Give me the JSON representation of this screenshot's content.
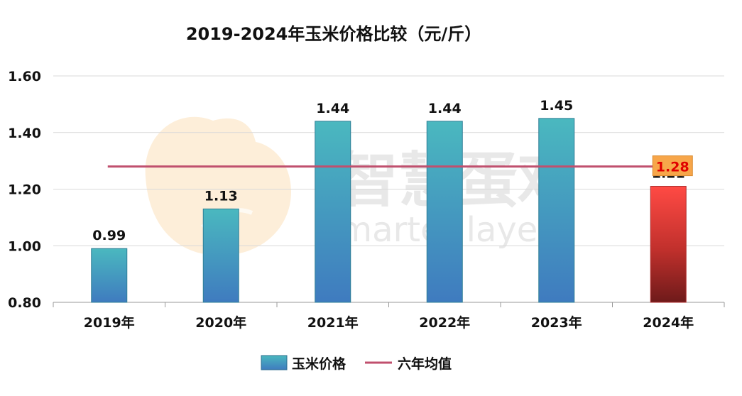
{
  "chart_data": {
    "type": "bar",
    "title": "2019-2024年玉米价格比较（元/斤）",
    "categories": [
      "2019年",
      "2020年",
      "2021年",
      "2022年",
      "2023年",
      "2024年"
    ],
    "series": [
      {
        "name": "玉米价格",
        "values": [
          0.99,
          1.13,
          1.44,
          1.44,
          1.45,
          1.21
        ]
      }
    ],
    "reference_line": {
      "name": "六年均值",
      "value": 1.28,
      "label": "1.28",
      "color": "#c0506e"
    },
    "ylim": [
      0.8,
      1.6
    ],
    "yticks": [
      "0.80",
      "1.00",
      "1.20",
      "1.40",
      "1.60"
    ],
    "ytick_values": [
      0.8,
      1.0,
      1.2,
      1.4,
      1.6
    ],
    "data_labels": [
      "0.99",
      "1.13",
      "1.44",
      "1.44",
      "1.45",
      "1.21"
    ],
    "grid": true,
    "legend_position": "bottom",
    "colors": {
      "bar_top": "#4ab8bf",
      "bar_bottom": "#3f7bbf",
      "highlight_top": "#ff4a44",
      "highlight_bottom": "#6e1a1a",
      "average_line": "#c0506e",
      "average_label_bg": "#f7a64a",
      "average_label_text": "#e00000"
    },
    "watermark": {
      "chinese": "智慧蛋鸡",
      "english": "Smarter layer"
    }
  }
}
